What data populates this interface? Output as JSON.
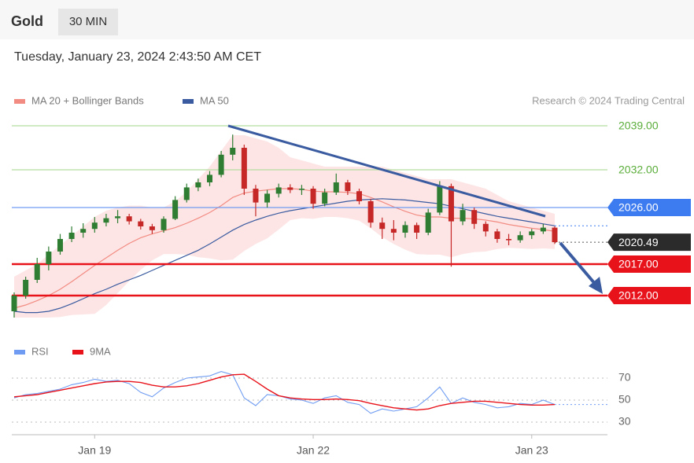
{
  "header": {
    "symbol": "Gold",
    "interval": "30 MIN",
    "timestamp": "Tuesday, January 23, 2024 2:43:50 AM CET"
  },
  "chart_data": [
    {
      "type": "candlestick",
      "source": "Research © 2024 Trading Central",
      "up_color": "#2e7d32",
      "down_color": "#c62828",
      "ylim": [
        2008,
        2040
      ],
      "ohlc": {
        "open": [
          2009.5,
          2012,
          2014.5,
          2017,
          2019,
          2021,
          2022,
          2022.6,
          2023.6,
          2024.3,
          2024.6,
          2023.8,
          2023,
          2022.4,
          2024.2,
          2027.2,
          2029.2,
          2030,
          2031.2,
          2034.4,
          2035.5,
          2029,
          2026.8,
          2028.2,
          2029.2,
          2028.8,
          2029,
          2026.6,
          2028.4,
          2030,
          2028.6,
          2027,
          2023.6,
          2022.6,
          2022,
          2023.2,
          2022,
          2025.2,
          2029.4,
          2023.8,
          2025.6,
          2023.4,
          2022.2,
          2021,
          2020.8,
          2021.6,
          2022.2,
          2022.8
        ],
        "high": [
          2012.5,
          2015,
          2018,
          2019.8,
          2021.8,
          2023,
          2023.5,
          2024.5,
          2025,
          2025.6,
          2025,
          2024.2,
          2023.4,
          2024.6,
          2027.8,
          2029.8,
          2030.6,
          2031.8,
          2035,
          2037.6,
          2036,
          2029.6,
          2028.8,
          2029.8,
          2029.7,
          2029.6,
          2029.4,
          2029,
          2031.4,
          2030.4,
          2029,
          2027.4,
          2024.4,
          2024,
          2023.8,
          2023.6,
          2025.8,
          2030.2,
          2029.8,
          2026.6,
          2026,
          2023.8,
          2022.6,
          2021.8,
          2022.2,
          2022.6,
          2023.4,
          2023
        ],
        "low": [
          2008.5,
          2011.5,
          2014,
          2016,
          2018.5,
          2020.5,
          2021.2,
          2022,
          2023,
          2023.5,
          2023.3,
          2022.5,
          2021.8,
          2022,
          2024,
          2026.8,
          2028.6,
          2029.4,
          2030.8,
          2033.5,
          2028,
          2024.6,
          2026,
          2027.6,
          2028.3,
          2028,
          2025.8,
          2026.2,
          2028,
          2028,
          2026.5,
          2022.8,
          2021,
          2020.8,
          2021.2,
          2021,
          2021.6,
          2024.8,
          2016.6,
          2023.2,
          2022.6,
          2021.4,
          2020.4,
          2020,
          2020.4,
          2021,
          2021.8,
          2020.2
        ],
        "close": [
          2012,
          2014.5,
          2017,
          2019,
          2021,
          2022,
          2022.6,
          2023.6,
          2024.3,
          2024.6,
          2023.8,
          2023,
          2022.4,
          2024.2,
          2027.2,
          2029.2,
          2030,
          2031.2,
          2034.4,
          2035.5,
          2029,
          2026.8,
          2028.2,
          2029.2,
          2028.8,
          2029,
          2026.6,
          2028.4,
          2030,
          2028.6,
          2027,
          2023.6,
          2022.6,
          2022,
          2023.2,
          2022,
          2025.2,
          2029.4,
          2023.8,
          2025.6,
          2023.4,
          2022.2,
          2021,
          2020.8,
          2021.6,
          2022.2,
          2022.8,
          2020.49
        ]
      },
      "series": [
        {
          "name": "MA 20 + Bollinger Bands",
          "color": "#f28b82",
          "band_color": "#fde0e0",
          "values": [
            2010,
            2010.5,
            2011.2,
            2012,
            2013,
            2014.2,
            2015.5,
            2016.8,
            2018,
            2019.2,
            2020.3,
            2021.2,
            2021.8,
            2022.3,
            2022.8,
            2023.5,
            2024.3,
            2025.2,
            2026.3,
            2027.6,
            2028.3,
            2028.6,
            2028.8,
            2029,
            2029,
            2028.9,
            2028.6,
            2028.5,
            2028.5,
            2028.4,
            2028.2,
            2027.6,
            2026.9,
            2026.1,
            2025.4,
            2024.8,
            2024.5,
            2024.5,
            2024.3,
            2024.3,
            2024.2,
            2024,
            2023.7,
            2023.3,
            2023,
            2022.7,
            2022.5,
            2022.2
          ],
          "upper": [
            2015,
            2016,
            2017,
            2018.5,
            2020,
            2021.5,
            2023,
            2024.5,
            2025.5,
            2026,
            2026.3,
            2026.3,
            2026,
            2026,
            2027,
            2028.5,
            2030.5,
            2032.5,
            2035,
            2037.5,
            2037.5,
            2037,
            2036.5,
            2035.5,
            2034,
            2033.5,
            2033,
            2032.5,
            2032.5,
            2032.5,
            2032.5,
            2032.5,
            2032.5,
            2032,
            2031.5,
            2031,
            2030.5,
            2030.5,
            2030.5,
            2030,
            2029.5,
            2029,
            2028,
            2027,
            2026.5,
            2026,
            2025.5,
            2025
          ],
          "lower": [
            2008.5,
            2008.5,
            2008.5,
            2008.5,
            2008.6,
            2008.9,
            2009,
            2009.1,
            2010.5,
            2012.4,
            2014.3,
            2016.1,
            2017.6,
            2018.6,
            2018.6,
            2018.5,
            2018.1,
            2017.9,
            2017.6,
            2017.7,
            2019.1,
            2020.2,
            2021.1,
            2022.5,
            2024,
            2024.3,
            2024.2,
            2024.5,
            2024.5,
            2024.3,
            2023.9,
            2022.7,
            2021.3,
            2020.2,
            2019.3,
            2018.6,
            2018.5,
            2018.5,
            2018.1,
            2018.6,
            2018.9,
            2019,
            2019.4,
            2019.6,
            2019.5,
            2019.4,
            2019.5,
            2019.4
          ]
        },
        {
          "name": "MA 50",
          "color": "#3a5ba0",
          "values": [
            2009.5,
            2009.3,
            2009.3,
            2009.5,
            2010,
            2010.7,
            2011.5,
            2012.3,
            2013,
            2013.8,
            2014.5,
            2015.2,
            2016,
            2016.8,
            2017.6,
            2018.4,
            2019.2,
            2020.2,
            2021.3,
            2022.4,
            2023.3,
            2024,
            2024.6,
            2025.1,
            2025.5,
            2025.8,
            2026.1,
            2026.4,
            2026.7,
            2027,
            2027.2,
            2027.3,
            2027.4,
            2027.3,
            2027.2,
            2027,
            2026.8,
            2026.6,
            2026.2,
            2025.8,
            2025.4,
            2025,
            2024.6,
            2024.3,
            2024,
            2023.7,
            2023.4,
            2023.1
          ]
        }
      ],
      "levels": [
        {
          "value": 2039,
          "label": "2039.00",
          "color": "#5aad3a",
          "line_color": "#b5dea0",
          "style": "text",
          "line": "solid"
        },
        {
          "value": 2032,
          "label": "2032.00",
          "color": "#5aad3a",
          "line_color": "#b5dea0",
          "style": "text",
          "line": "solid"
        },
        {
          "value": 2026,
          "label": "2026.00",
          "color": "#3d7bf0",
          "line_color": "#6f9cf2",
          "style": "box",
          "line": "solid"
        },
        {
          "value": 2020.49,
          "label": "2020.49",
          "color": "#2b2b2b",
          "line_color": "#555555",
          "style": "box",
          "line": "dotted"
        },
        {
          "value": 2017,
          "label": "2017.00",
          "color": "#e8121a",
          "line_color": "#e8121a",
          "style": "box",
          "line": "solid"
        },
        {
          "value": 2012,
          "label": "2012.00",
          "color": "#e8121a",
          "line_color": "#e8121a",
          "style": "box",
          "line": "solid"
        }
      ]
    },
    {
      "type": "line",
      "categories": [
        null,
        null,
        null,
        null,
        null,
        null,
        null,
        "Jan 19",
        null,
        null,
        null,
        null,
        null,
        null,
        null,
        null,
        null,
        null,
        null,
        null,
        null,
        null,
        null,
        null,
        null,
        null,
        "Jan 22",
        null,
        null,
        null,
        null,
        null,
        null,
        null,
        null,
        null,
        null,
        null,
        null,
        null,
        null,
        null,
        null,
        null,
        null,
        "Jan 23",
        null,
        null
      ],
      "ylim": [
        22,
        80
      ],
      "yticks": [
        70,
        50,
        30
      ],
      "grid": true,
      "series": [
        {
          "name": "RSI",
          "color": "#6f9cf2",
          "values": [
            52,
            55,
            56,
            58,
            60,
            64,
            66,
            69,
            67,
            68,
            65,
            57,
            53,
            61,
            66,
            70,
            71,
            72,
            76,
            73,
            52,
            45,
            55,
            54,
            51,
            50,
            47,
            52,
            54,
            48,
            46,
            38,
            42,
            40,
            42,
            44,
            52,
            62,
            47,
            52,
            48,
            46,
            43,
            44,
            47,
            46,
            50,
            46
          ]
        },
        {
          "name": "9MA",
          "color": "#e8121a",
          "values": [
            53,
            54,
            55,
            57,
            59,
            61,
            63,
            65,
            66.5,
            67,
            67,
            66,
            63.5,
            62,
            62,
            63,
            65,
            68,
            71,
            73,
            73.5,
            67,
            60,
            54,
            52,
            51,
            50.5,
            50.5,
            51,
            50.5,
            49.5,
            47,
            45,
            43,
            42,
            41,
            42,
            45,
            47,
            48,
            49,
            49,
            48,
            47,
            46,
            45.5,
            45.5,
            46
          ]
        }
      ]
    }
  ]
}
